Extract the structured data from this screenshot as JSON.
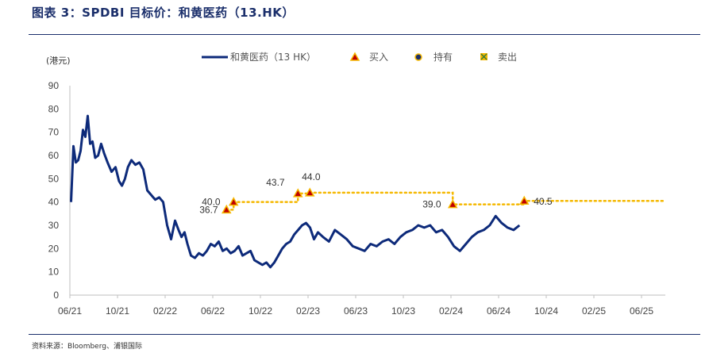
{
  "header": {
    "title": "图表 3：SPDBI 目标价：和黄医药（13.HK）"
  },
  "footer": {
    "source": "资料来源：Bloomberg、浦银国际"
  },
  "colors": {
    "price_line": "#0d2a7a",
    "target_line": "#f5b800",
    "marker_buy": "#c00000",
    "marker_fill": "#f5b800",
    "rule": "#1b2f6b"
  },
  "chart_data": {
    "type": "line",
    "unit_label": "(港元)",
    "ylim": [
      0,
      90
    ],
    "yticks": [
      "0",
      "10",
      "20",
      "30",
      "40",
      "50",
      "60",
      "70",
      "80",
      "90"
    ],
    "xticks": [
      "06/21",
      "10/21",
      "02/22",
      "06/22",
      "10/22",
      "02/23",
      "06/23",
      "10/23",
      "02/24",
      "06/24",
      "10/24",
      "02/25",
      "06/25"
    ],
    "grid": false,
    "legend_position": "top",
    "legend": {
      "price": "和黄医药（13 HK）",
      "buy": "买入",
      "hold": "持有",
      "sell": "卖出"
    },
    "series": [
      {
        "name": "和黄医药（13 HK）",
        "x": [
          "06/21",
          "06/21",
          "06/21",
          "06/21",
          "06/21",
          "07/21",
          "07/21",
          "07/21",
          "07/21",
          "07/21",
          "08/21",
          "08/21",
          "08/21",
          "08/21",
          "09/21",
          "09/21",
          "09/21",
          "10/21",
          "10/21",
          "10/21",
          "10/21",
          "11/21",
          "11/21",
          "11/21",
          "12/21",
          "12/21",
          "12/21",
          "01/22",
          "01/22",
          "01/22",
          "02/22",
          "02/22",
          "02/22",
          "03/22",
          "03/22",
          "03/22",
          "03/22",
          "04/22",
          "04/22",
          "04/22",
          "05/22",
          "05/22",
          "05/22",
          "06/22",
          "06/22",
          "06/22",
          "07/22",
          "07/22",
          "07/22",
          "08/22",
          "08/22",
          "08/22",
          "09/22",
          "09/22",
          "09/22",
          "10/22",
          "10/22",
          "10/22",
          "11/22",
          "11/22",
          "11/22",
          "12/22",
          "12/22",
          "12/22",
          "01/23",
          "01/23",
          "01/23",
          "02/23",
          "02/23",
          "02/23",
          "03/23",
          "03/23",
          "04/23",
          "04/23",
          "05/23",
          "05/23",
          "06/23",
          "06/23",
          "07/23",
          "07/23",
          "08/23",
          "08/23",
          "09/23",
          "09/23",
          "10/23",
          "10/23",
          "11/23",
          "11/23",
          "12/23",
          "12/23",
          "01/24",
          "01/24",
          "02/24",
          "02/24",
          "03/24",
          "03/24",
          "04/24",
          "04/24",
          "05/24",
          "05/24",
          "06/24",
          "06/24",
          "07/24",
          "07/24"
        ],
        "values": [
          40,
          64,
          57,
          58,
          62,
          71,
          68,
          77,
          65,
          66,
          59,
          60,
          65,
          61,
          57,
          53,
          55,
          49,
          47,
          50,
          55,
          58,
          56,
          57,
          54,
          45,
          43,
          41,
          42,
          40,
          30,
          24,
          32,
          28,
          25,
          27,
          22,
          17,
          16,
          18,
          17,
          19,
          22,
          21,
          23,
          19,
          20,
          18,
          19,
          21,
          17,
          18,
          19,
          15,
          14,
          13,
          14,
          12,
          14,
          17,
          20,
          22,
          23,
          26,
          28,
          30,
          31,
          29,
          24,
          27,
          25,
          23,
          28,
          26,
          24,
          21,
          20,
          19,
          22,
          21,
          23,
          24,
          22,
          25,
          27,
          28,
          30,
          29,
          30,
          27,
          28,
          25,
          21,
          19,
          22,
          25,
          27,
          28,
          30,
          34,
          31,
          29,
          28,
          30
        ]
      }
    ],
    "target_prices": [
      {
        "date": "07/22",
        "value": 36.7,
        "label": "36.7",
        "rating": "买入"
      },
      {
        "date": "07/22",
        "value": 40.0,
        "label": "40.0",
        "rating": "买入"
      },
      {
        "date": "01/23",
        "value": 43.7,
        "label": "43.7",
        "rating": "买入"
      },
      {
        "date": "02/23",
        "value": 44.0,
        "label": "44.0",
        "rating": "买入"
      },
      {
        "date": "02/24",
        "value": 39.0,
        "label": "39.0",
        "rating": "买入"
      },
      {
        "date": "08/24",
        "value": 40.5,
        "label": "40.5",
        "rating": "买入"
      }
    ]
  }
}
